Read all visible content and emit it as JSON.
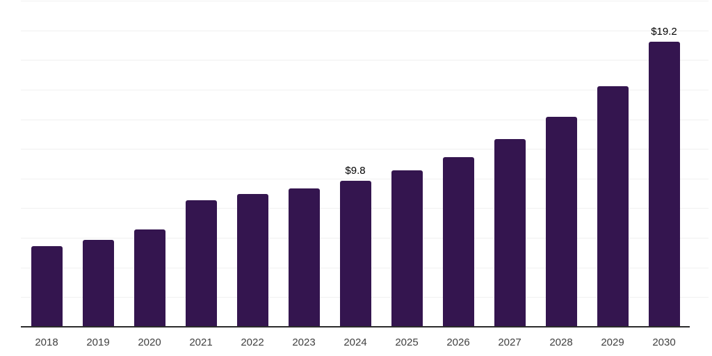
{
  "chart_data": {
    "type": "bar",
    "title": "",
    "xlabel": "",
    "ylabel": "",
    "categories": [
      "2018",
      "2019",
      "2020",
      "2021",
      "2022",
      "2023",
      "2024",
      "2025",
      "2026",
      "2027",
      "2028",
      "2029",
      "2030"
    ],
    "values": [
      5.4,
      5.8,
      6.5,
      8.5,
      8.9,
      9.3,
      9.8,
      10.5,
      11.4,
      12.6,
      14.1,
      16.2,
      19.2
    ],
    "data_labels": [
      "",
      "",
      "",
      "",
      "",
      "",
      "$9.8",
      "",
      "",
      "",
      "",
      "",
      "$19.2"
    ],
    "ylim": [
      0,
      22
    ],
    "gridline_step": 2,
    "grid": "horizontal",
    "legend_position": "none",
    "colors": {
      "bar": "#34154f",
      "gridline": "#f0f0f0",
      "axis_line": "#2b2b2b",
      "tick_label": "#404040",
      "data_label": "#000000",
      "background": "#ffffff"
    }
  }
}
